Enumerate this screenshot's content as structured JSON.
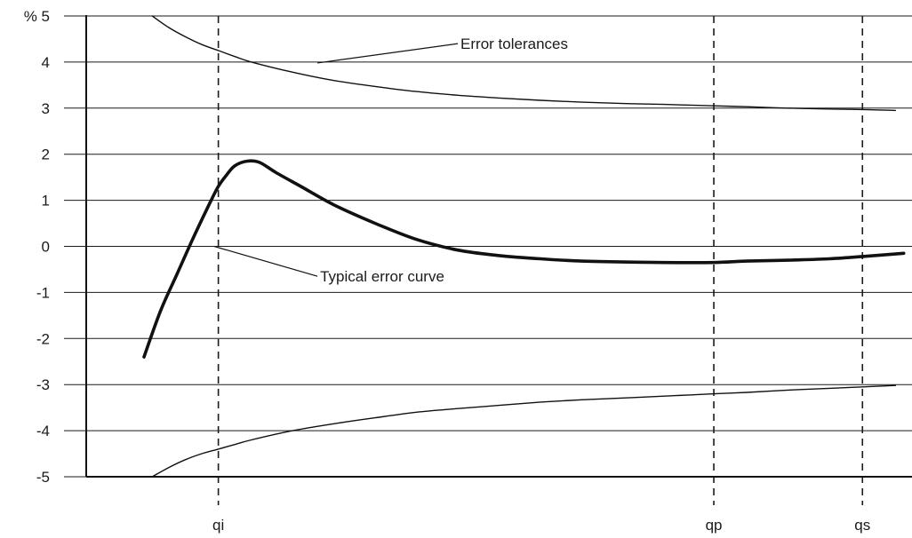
{
  "chart_data": {
    "type": "line",
    "ylim": [
      -5,
      5
    ],
    "grid": true,
    "y_ticks": [
      {
        "value": 5,
        "label": "% 5"
      },
      {
        "value": 4,
        "label": "4"
      },
      {
        "value": 3,
        "label": "3"
      },
      {
        "value": 2,
        "label": "2"
      },
      {
        "value": 1,
        "label": "1"
      },
      {
        "value": 0,
        "label": "0"
      },
      {
        "value": -1,
        "label": "-1"
      },
      {
        "value": -2,
        "label": "-2"
      },
      {
        "value": -3,
        "label": "-3"
      },
      {
        "value": -4,
        "label": "-4"
      },
      {
        "value": -5,
        "label": "-5"
      }
    ],
    "x_markers": [
      {
        "id": "qi",
        "label": "qi",
        "position": 0.16
      },
      {
        "id": "qp",
        "label": "qp",
        "position": 0.76
      },
      {
        "id": "qs",
        "label": "qs",
        "position": 0.94
      }
    ],
    "series": [
      {
        "id": "upper-tolerance",
        "style": "thin",
        "points": [
          [
            0.08,
            5.0
          ],
          [
            0.1,
            4.75
          ],
          [
            0.12,
            4.55
          ],
          [
            0.14,
            4.38
          ],
          [
            0.16,
            4.25
          ],
          [
            0.18,
            4.12
          ],
          [
            0.2,
            4.0
          ],
          [
            0.25,
            3.78
          ],
          [
            0.3,
            3.6
          ],
          [
            0.35,
            3.47
          ],
          [
            0.4,
            3.36
          ],
          [
            0.45,
            3.28
          ],
          [
            0.5,
            3.22
          ],
          [
            0.55,
            3.17
          ],
          [
            0.6,
            3.13
          ],
          [
            0.65,
            3.1
          ],
          [
            0.7,
            3.08
          ],
          [
            0.76,
            3.05
          ],
          [
            0.8,
            3.03
          ],
          [
            0.85,
            3.0
          ],
          [
            0.9,
            2.98
          ],
          [
            0.94,
            2.97
          ],
          [
            0.98,
            2.95
          ]
        ]
      },
      {
        "id": "lower-tolerance",
        "style": "thin",
        "points": [
          [
            0.08,
            -5.0
          ],
          [
            0.1,
            -4.8
          ],
          [
            0.12,
            -4.63
          ],
          [
            0.14,
            -4.5
          ],
          [
            0.16,
            -4.4
          ],
          [
            0.18,
            -4.3
          ],
          [
            0.2,
            -4.2
          ],
          [
            0.25,
            -4.0
          ],
          [
            0.3,
            -3.85
          ],
          [
            0.35,
            -3.72
          ],
          [
            0.4,
            -3.6
          ],
          [
            0.45,
            -3.52
          ],
          [
            0.5,
            -3.45
          ],
          [
            0.55,
            -3.38
          ],
          [
            0.6,
            -3.33
          ],
          [
            0.65,
            -3.29
          ],
          [
            0.7,
            -3.25
          ],
          [
            0.76,
            -3.2
          ],
          [
            0.8,
            -3.17
          ],
          [
            0.85,
            -3.12
          ],
          [
            0.9,
            -3.08
          ],
          [
            0.94,
            -3.05
          ],
          [
            0.98,
            -3.02
          ]
        ]
      },
      {
        "id": "typical-error-curve",
        "style": "thick",
        "points": [
          [
            0.07,
            -2.4
          ],
          [
            0.09,
            -1.4
          ],
          [
            0.11,
            -0.6
          ],
          [
            0.13,
            0.2
          ],
          [
            0.15,
            0.95
          ],
          [
            0.16,
            1.3
          ],
          [
            0.17,
            1.55
          ],
          [
            0.18,
            1.75
          ],
          [
            0.195,
            1.85
          ],
          [
            0.21,
            1.82
          ],
          [
            0.23,
            1.6
          ],
          [
            0.26,
            1.3
          ],
          [
            0.3,
            0.9
          ],
          [
            0.35,
            0.5
          ],
          [
            0.4,
            0.15
          ],
          [
            0.45,
            -0.08
          ],
          [
            0.5,
            -0.2
          ],
          [
            0.55,
            -0.27
          ],
          [
            0.6,
            -0.32
          ],
          [
            0.65,
            -0.34
          ],
          [
            0.7,
            -0.35
          ],
          [
            0.76,
            -0.35
          ],
          [
            0.8,
            -0.32
          ],
          [
            0.85,
            -0.3
          ],
          [
            0.9,
            -0.27
          ],
          [
            0.94,
            -0.22
          ],
          [
            0.99,
            -0.15
          ]
        ]
      }
    ],
    "annotations": [
      {
        "id": "error-tolerances",
        "text": "Error tolerances",
        "target_series": "upper-tolerance",
        "target": [
          0.28,
          3.98
        ],
        "anchor": [
          0.45,
          4.4
        ]
      },
      {
        "id": "typical-error-curve",
        "text": "Typical error curve",
        "target_series": "typical-error-curve",
        "target": [
          0.155,
          0.0
        ],
        "anchor": [
          0.28,
          -0.65
        ]
      }
    ]
  }
}
